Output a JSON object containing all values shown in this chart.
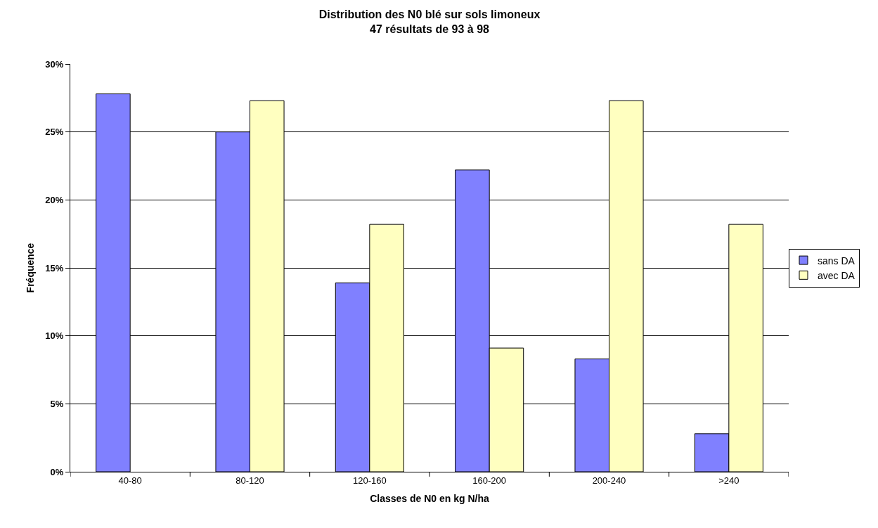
{
  "chart_data": {
    "type": "bar",
    "title": "Distribution des N0 blé sur sols limoneux",
    "subtitle": "47 résultats de 93 à 98",
    "xlabel": "Classes de N0 en kg N/ha",
    "ylabel": "Fréquence",
    "categories": [
      "40-80",
      "80-120",
      "120-160",
      "160-200",
      "200-240",
      ">240"
    ],
    "series": [
      {
        "name": "sans DA",
        "color": "#8080ff",
        "values": [
          27.8,
          25.0,
          13.9,
          22.2,
          8.3,
          2.8
        ]
      },
      {
        "name": "avec DA",
        "color": "#ffffc0",
        "values": [
          null,
          27.3,
          18.2,
          9.1,
          27.3,
          18.2
        ]
      }
    ],
    "ylim": [
      0,
      30
    ],
    "yticks": [
      {
        "value": 0,
        "label": "0%"
      },
      {
        "value": 5,
        "label": "5%"
      },
      {
        "value": 10,
        "label": "10%"
      },
      {
        "value": 15,
        "label": "15%"
      },
      {
        "value": 20,
        "label": "20%"
      },
      {
        "value": 25,
        "label": "25%"
      },
      {
        "value": 30,
        "label": "30%"
      }
    ],
    "grid": "y",
    "legend": "right"
  }
}
